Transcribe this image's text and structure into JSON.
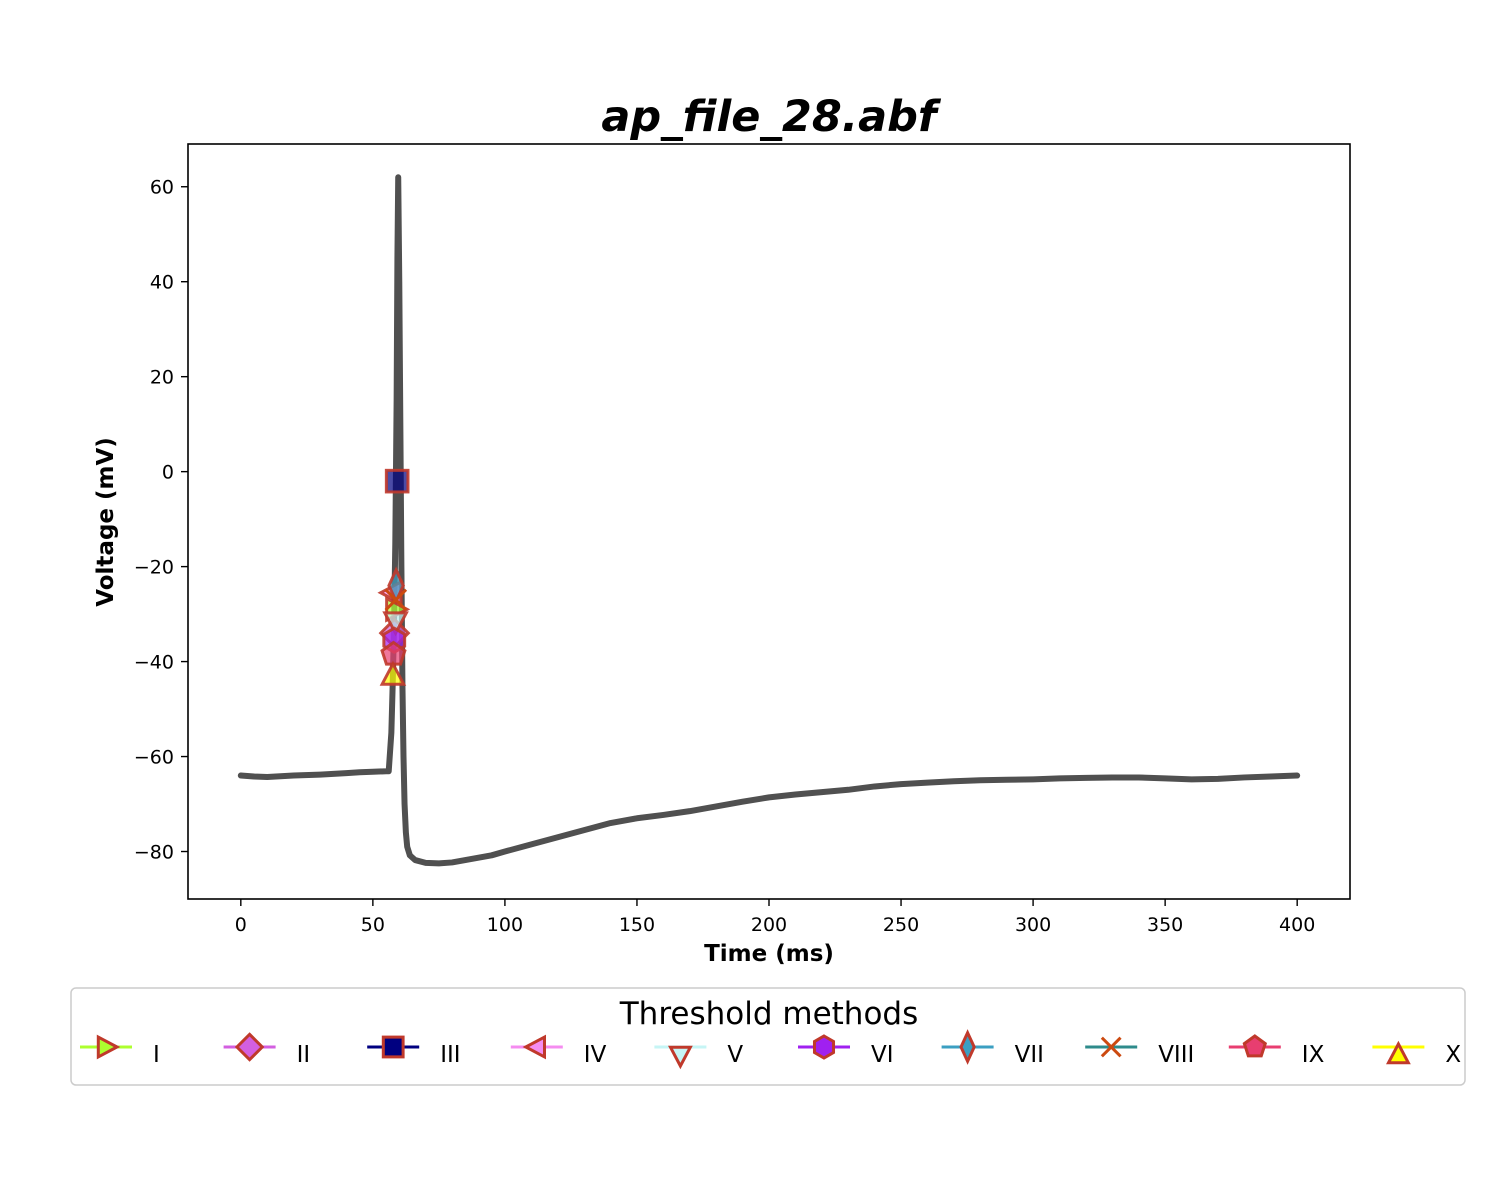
{
  "chart_data": {
    "type": "line",
    "title": "ap_file_28.abf",
    "xlabel": "Time (ms)",
    "ylabel": "Voltage (mV)",
    "xlim": [
      -20,
      420
    ],
    "ylim": [
      -90,
      69
    ],
    "xticks": [
      0,
      50,
      100,
      150,
      200,
      250,
      300,
      350,
      400
    ],
    "yticks": [
      -80,
      -60,
      -40,
      -20,
      0,
      20,
      40,
      60
    ],
    "xtick_labels": [
      "0",
      "50",
      "100",
      "150",
      "200",
      "250",
      "300",
      "350",
      "400"
    ],
    "ytick_labels": [
      "−80",
      "−60",
      "−40",
      "−20",
      "0",
      "20",
      "40",
      "60"
    ],
    "grid": false,
    "trace": {
      "color": "#505050",
      "x": [
        0,
        5,
        10,
        20,
        30,
        40,
        45,
        50,
        55,
        56,
        57,
        57.5,
        58,
        58.5,
        59,
        59.3,
        59.6,
        60,
        60.4,
        60.8,
        61.2,
        61.6,
        62,
        62.5,
        63,
        64,
        66,
        70,
        75,
        80,
        85,
        90,
        95,
        100,
        110,
        120,
        130,
        140,
        150,
        160,
        170,
        180,
        190,
        200,
        210,
        220,
        230,
        240,
        250,
        260,
        270,
        280,
        290,
        300,
        310,
        320,
        330,
        340,
        350,
        360,
        370,
        380,
        390,
        400
      ],
      "y": [
        -64,
        -64.2,
        -64.3,
        -64,
        -63.8,
        -63.5,
        -63.3,
        -63.2,
        -63.1,
        -63.1,
        -55,
        -45,
        -33,
        -15,
        15,
        45,
        62,
        40,
        10,
        -20,
        -45,
        -60,
        -70,
        -76,
        -79,
        -80.8,
        -81.8,
        -82.4,
        -82.5,
        -82.3,
        -81.8,
        -81.3,
        -80.8,
        -80,
        -78.5,
        -77,
        -75.5,
        -74,
        -73,
        -72.3,
        -71.5,
        -70.5,
        -69.5,
        -68.6,
        -68,
        -67.5,
        -67,
        -66.3,
        -65.8,
        -65.5,
        -65.2,
        -65,
        -64.9,
        -64.8,
        -64.6,
        -64.5,
        -64.4,
        -64.4,
        -64.6,
        -64.8,
        -64.7,
        -64.4,
        -64.2,
        -64
      ]
    },
    "markers": [
      {
        "name": "I",
        "shape": "triangle-right",
        "line_color": "#adff2f",
        "face": "#adff2f",
        "edge": "#c0392b",
        "x": 58.4,
        "y": -29
      },
      {
        "name": "II",
        "shape": "diamond",
        "line_color": "#d35fe0",
        "face": "#d35fe0",
        "edge": "#c0392b",
        "x": 58.2,
        "y": -34
      },
      {
        "name": "III",
        "shape": "square",
        "line_color": "#000080",
        "face": "#000080",
        "edge": "#c0392b",
        "x": 59.2,
        "y": -2
      },
      {
        "name": "IV",
        "shape": "triangle-left",
        "line_color": "#f58cf0",
        "face": "#f58cf0",
        "edge": "#c0392b",
        "x": 57.5,
        "y": -25.5
      },
      {
        "name": "V",
        "shape": "triangle-down",
        "line_color": "#c6f5f5",
        "face": "#c6f5f5",
        "edge": "#c0392b",
        "x": 58.6,
        "y": -31.5
      },
      {
        "name": "VI",
        "shape": "hexagon",
        "line_color": "#a020f0",
        "face": "#a020f0",
        "edge": "#c0392b",
        "x": 58.1,
        "y": -35.5
      },
      {
        "name": "VII",
        "shape": "thin-diamond",
        "line_color": "#3b9fc2",
        "face": "#3b9fc2",
        "edge": "#c0392b",
        "x": 58.8,
        "y": -24
      },
      {
        "name": "VIII",
        "shape": "x",
        "line_color": "#2e8b8b",
        "face": "#2e8b8b",
        "edge": "#cc4a10",
        "x": 58.7,
        "y": -27
      },
      {
        "name": "IX",
        "shape": "pentagon",
        "line_color": "#e83e70",
        "face": "#e83e70",
        "edge": "#c0392b",
        "x": 57.8,
        "y": -38.5
      },
      {
        "name": "X",
        "shape": "triangle-up",
        "line_color": "#ffff00",
        "face": "#ffff00",
        "edge": "#c0392b",
        "x": 57.6,
        "y": -43
      }
    ],
    "legend": {
      "title": "Threshold methods",
      "placement": "bottom-center",
      "columns": 10
    }
  }
}
